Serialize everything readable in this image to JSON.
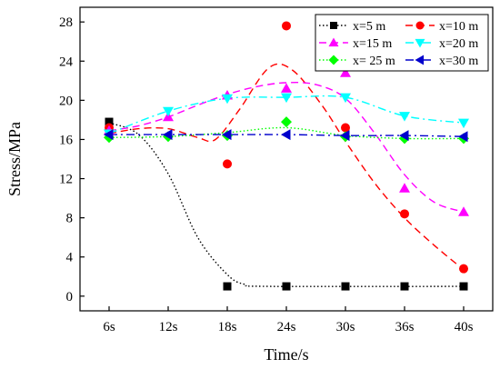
{
  "chart_data": {
    "type": "scatter",
    "xlabel": "Time/s",
    "ylabel": "Stress/MPa",
    "categories": [
      "6s",
      "12s",
      "18s",
      "24s",
      "30s",
      "36s",
      "40s"
    ],
    "ylim": [
      -1.5,
      29.5
    ],
    "yticks": [
      0,
      4,
      8,
      12,
      16,
      20,
      24,
      28
    ],
    "grid": false,
    "legend_position": "top-right",
    "series": [
      {
        "name": "x=5 m",
        "color": "#000000",
        "marker": "square",
        "line_style": "dotted",
        "values": [
          17.8,
          null,
          1.0,
          1.0,
          1.0,
          1.0,
          1.0
        ],
        "curve": [
          [
            0,
            17.7
          ],
          [
            0.5,
            16.5
          ],
          [
            1.0,
            12.5
          ],
          [
            1.5,
            6.0
          ],
          [
            2.0,
            2.2
          ],
          [
            2.3,
            1.2
          ],
          [
            2.7,
            1.0
          ],
          [
            6.0,
            1.0
          ]
        ]
      },
      {
        "name": "x=10 m",
        "color": "#ff0000",
        "marker": "circle",
        "line_style": "dashed",
        "values": [
          17.2,
          null,
          13.5,
          27.6,
          17.2,
          8.4,
          2.8
        ],
        "curve": [
          [
            0,
            16.6
          ],
          [
            0.5,
            17.1
          ],
          [
            1.0,
            17.1
          ],
          [
            1.5,
            16.2
          ],
          [
            1.8,
            16.0
          ],
          [
            2.2,
            19.0
          ],
          [
            2.7,
            23.3
          ],
          [
            3.1,
            23.1
          ],
          [
            3.6,
            19.5
          ],
          [
            4.0,
            15.8
          ],
          [
            4.5,
            11.5
          ],
          [
            5.0,
            8.0
          ],
          [
            5.5,
            5.2
          ],
          [
            6.0,
            2.7
          ]
        ]
      },
      {
        "name": "x=15 m",
        "color": "#ff00ff",
        "marker": "triangle-up",
        "line_style": "dashed",
        "values": [
          16.9,
          18.3,
          20.5,
          21.2,
          22.8,
          11.0,
          8.6
        ],
        "curve": [
          [
            0,
            16.9
          ],
          [
            0.5,
            17.4
          ],
          [
            1.0,
            18.3
          ],
          [
            1.5,
            19.5
          ],
          [
            2.0,
            20.6
          ],
          [
            2.5,
            21.4
          ],
          [
            3.0,
            21.8
          ],
          [
            3.5,
            21.6
          ],
          [
            4.0,
            20.2
          ],
          [
            4.5,
            16.6
          ],
          [
            5.0,
            12.4
          ],
          [
            5.5,
            9.6
          ],
          [
            6.0,
            8.6
          ]
        ]
      },
      {
        "name": "x=20 m",
        "color": "#00ffff",
        "marker": "triangle-down",
        "line_style": "dash-dot",
        "values": [
          16.6,
          18.9,
          20.2,
          20.3,
          20.3,
          18.4,
          17.7
        ],
        "curve": [
          [
            0,
            16.6
          ],
          [
            1.0,
            18.9
          ],
          [
            2.0,
            20.2
          ],
          [
            3.0,
            20.3
          ],
          [
            4.0,
            20.3
          ],
          [
            5.0,
            18.4
          ],
          [
            6.0,
            17.7
          ]
        ]
      },
      {
        "name": "x= 25 m",
        "color": "#00ff00",
        "marker": "diamond",
        "line_style": "dotted",
        "values": [
          16.2,
          16.3,
          16.4,
          17.8,
          16.3,
          16.1,
          16.1
        ],
        "curve": [
          [
            0,
            16.2
          ],
          [
            1.0,
            16.3
          ],
          [
            2.0,
            16.7
          ],
          [
            3.0,
            17.2
          ],
          [
            4.0,
            16.4
          ],
          [
            5.0,
            16.1
          ],
          [
            6.0,
            16.1
          ]
        ]
      },
      {
        "name": "x=30 m",
        "color": "#0000cc",
        "marker": "triangle-left",
        "line_style": "dash-dot",
        "values": [
          16.5,
          16.5,
          16.5,
          16.5,
          16.4,
          16.4,
          16.3
        ],
        "curve": [
          [
            0,
            16.5
          ],
          [
            1.0,
            16.5
          ],
          [
            2.0,
            16.5
          ],
          [
            3.0,
            16.5
          ],
          [
            4.0,
            16.4
          ],
          [
            5.0,
            16.4
          ],
          [
            6.0,
            16.3
          ]
        ]
      }
    ]
  }
}
